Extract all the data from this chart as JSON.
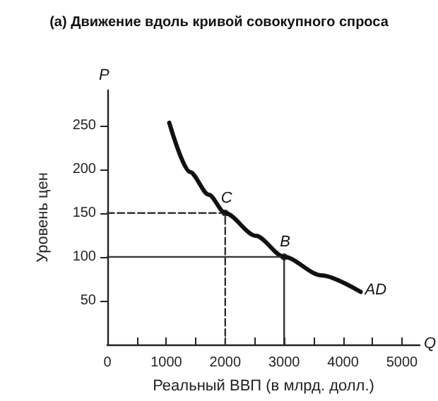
{
  "chart_data": {
    "type": "line",
    "title": "(а) Движение вдоль кривой совокупного спроса",
    "xlabel": "Реальный ВВП (в млрд. долл.)",
    "ylabel": "Уровень цен",
    "xlim": [
      0,
      5300
    ],
    "ylim": [
      0,
      290
    ],
    "xticks": [
      0,
      {
        "value": 500,
        "label": null
      },
      1000,
      {
        "value": 1500,
        "label": null
      },
      2000,
      {
        "value": 2500,
        "label": null
      },
      3000,
      {
        "value": 3500,
        "label": null
      },
      4000,
      {
        "value": 4500,
        "label": null
      },
      5000
    ],
    "yticks": [
      50,
      100,
      150,
      200,
      250
    ],
    "grid": false,
    "series": [
      {
        "color": "#111111",
        "marker": "none",
        "line_style": "solid",
        "x": [
          1050,
          1400,
          1720,
          2000,
          2520,
          3000,
          3630,
          4300
        ],
        "values": [
          253,
          197,
          171,
          150,
          124,
          100,
          79,
          60
        ]
      },
      {
        "type": "line",
        "color": "#333333",
        "marker": "none",
        "line_style": "dashed",
        "x": [
          0,
          2000,
          2000
        ],
        "values": [
          150,
          150,
          0
        ]
      },
      {
        "type": "line",
        "color": "#333333",
        "marker": "none",
        "line_style": "solid",
        "x": [
          0,
          3000,
          3000
        ],
        "values": [
          100,
          100,
          0
        ]
      },
      {
        "type": "scatter",
        "color": "#111111",
        "marker": "circle",
        "x": [
          2000,
          3000
        ],
        "values": [
          150,
          100
        ]
      }
    ],
    "annotations": [
      {
        "text": "C",
        "x": 2000,
        "y": 150
      },
      {
        "text": "B",
        "x": 3000,
        "y": 100
      },
      {
        "text": "AD",
        "x": 4300,
        "y": 60
      },
      "P",
      "Q"
    ]
  }
}
